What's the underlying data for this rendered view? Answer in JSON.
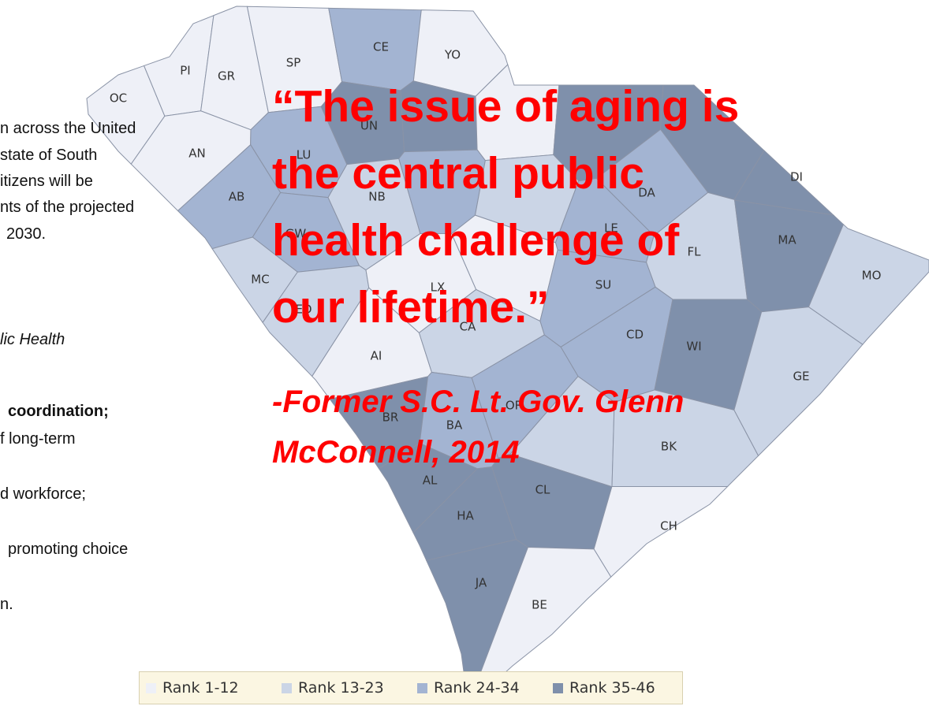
{
  "left_text": [
    "n across the United",
    "state of South",
    "itizens will be",
    "nts of the projected",
    "2030.",
    "lic Health",
    "coordination;",
    "f long-term",
    "d workforce;",
    "promoting choice",
    "n."
  ],
  "quote": {
    "lines": [
      "“The issue of aging is",
      "the central public",
      "health challenge of",
      "our lifetime.”"
    ],
    "attribution": [
      "-Former S.C. Lt. Gov. Glenn",
      "McConnell, 2014"
    ]
  },
  "legend": [
    {
      "label": "Rank 1-12",
      "color": "#eef0f7"
    },
    {
      "label": "Rank 13-23",
      "color": "#cbd5e6"
    },
    {
      "label": "Rank 24-34",
      "color": "#a3b4d2"
    },
    {
      "label": "Rank 35-46",
      "color": "#7f90ab"
    }
  ],
  "counties": [
    {
      "label": "OC",
      "color": "#eef0f7"
    },
    {
      "label": "PI",
      "color": "#eef0f7"
    },
    {
      "label": "GR",
      "color": "#eef0f7"
    },
    {
      "label": "SP",
      "color": "#eef0f7"
    },
    {
      "label": "CE",
      "color": "#a3b4d2"
    },
    {
      "label": "YO",
      "color": "#eef0f7"
    },
    {
      "label": "AN",
      "color": "#eef0f7"
    },
    {
      "label": "LU",
      "color": "#a3b4d2"
    },
    {
      "label": "UN",
      "color": "#7f90ab"
    },
    {
      "label": null,
      "color": "#7f90ab"
    },
    {
      "label": null,
      "color": "#eef0f7"
    },
    {
      "label": null,
      "color": "#7f90ab"
    },
    {
      "label": null,
      "color": "#7f90ab"
    },
    {
      "label": "DI",
      "color": "#7f90ab"
    },
    {
      "label": "AB",
      "color": "#a3b4d2"
    },
    {
      "label": "GW",
      "color": "#a3b4d2"
    },
    {
      "label": "NB",
      "color": "#cbd5e6"
    },
    {
      "label": null,
      "color": "#a3b4d2"
    },
    {
      "label": null,
      "color": "#cbd5e6"
    },
    {
      "label": "DA",
      "color": "#a3b4d2"
    },
    {
      "label": "LE",
      "color": "#a3b4d2"
    },
    {
      "label": "FL",
      "color": "#cbd5e6"
    },
    {
      "label": "MA",
      "color": "#7f90ab"
    },
    {
      "label": "MC",
      "color": "#cbd5e6"
    },
    {
      "label": "ED",
      "color": "#cbd5e6"
    },
    {
      "label": "LX",
      "color": "#eef0f7"
    },
    {
      "label": null,
      "color": "#eef0f7"
    },
    {
      "label": "SU",
      "color": "#a3b4d2"
    },
    {
      "label": "MO",
      "color": "#cbd5e6"
    },
    {
      "label": "AI",
      "color": "#eef0f7"
    },
    {
      "label": "CA",
      "color": "#cbd5e6"
    },
    {
      "label": "CD",
      "color": "#a3b4d2"
    },
    {
      "label": "WI",
      "color": "#7f90ab"
    },
    {
      "label": "BR",
      "color": "#7f90ab"
    },
    {
      "label": "BA",
      "color": "#a3b4d2"
    },
    {
      "label": "OR",
      "color": "#a3b4d2"
    },
    {
      "label": null,
      "color": "#cbd5e6"
    },
    {
      "label": "BK",
      "color": "#cbd5e6"
    },
    {
      "label": "GE",
      "color": "#cbd5e6"
    },
    {
      "label": "AL",
      "color": "#7f90ab"
    },
    {
      "label": "CL",
      "color": "#7f90ab"
    },
    {
      "label": "HA",
      "color": "#7f90ab"
    },
    {
      "label": "CH",
      "color": "#eef0f7"
    },
    {
      "label": "JA",
      "color": "#7f90ab"
    },
    {
      "label": "BE",
      "color": "#eef0f7"
    }
  ]
}
